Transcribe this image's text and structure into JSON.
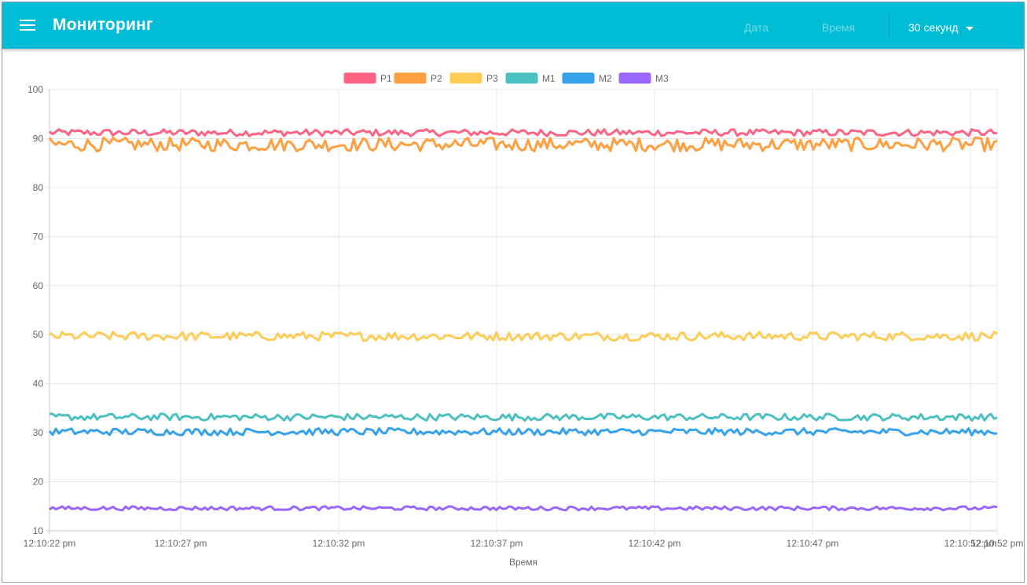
{
  "appbar": {
    "title": "Мониторинг",
    "date_label": "Дата",
    "time_label": "Время",
    "period_selected": "30 секунд",
    "menu_icon": "menu-icon",
    "dropdown_icon": "caret-down-icon",
    "color": "#00bcd4"
  },
  "chart_data": {
    "type": "line",
    "xlabel": "Время",
    "ylabel": "",
    "ylim": [
      10,
      100
    ],
    "yticks": [
      "100",
      "90",
      "80",
      "70",
      "60",
      "50",
      "40",
      "30",
      "20",
      "10"
    ],
    "xticks": [
      "12:10:22 pm",
      "12:10:27 pm",
      "12:10:32 pm",
      "12:10:37 pm",
      "12:10:42 pm",
      "12:10:47 pm",
      "12:10:52 pm",
      "12:10:52 pm"
    ],
    "grid": true,
    "legend_position": "top",
    "series": [
      {
        "name": "P1",
        "color": "#ff6384",
        "mean": 91.2,
        "amp": 0.7
      },
      {
        "name": "P2",
        "color": "#ff9f40",
        "mean": 88.8,
        "amp": 1.4
      },
      {
        "name": "P3",
        "color": "#ffcd56",
        "mean": 49.7,
        "amp": 0.9
      },
      {
        "name": "M1",
        "color": "#4bc0c0",
        "mean": 33.2,
        "amp": 0.7
      },
      {
        "name": "M2",
        "color": "#36a2eb",
        "mean": 30.2,
        "amp": 0.7
      },
      {
        "name": "M3",
        "color": "#9966ff",
        "mean": 14.6,
        "amp": 0.4
      }
    ]
  }
}
